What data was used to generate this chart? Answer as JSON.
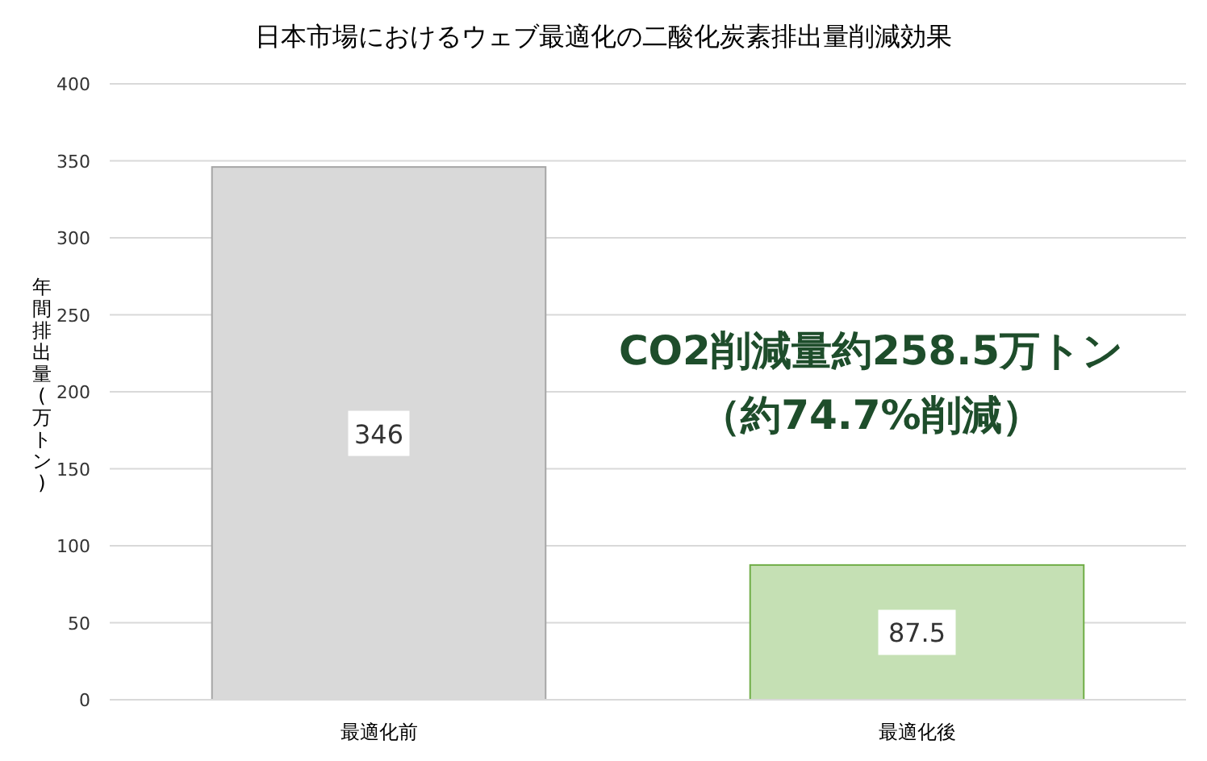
{
  "chart_data": {
    "type": "bar",
    "title": "日本市場におけるウェブ最適化の二酸化炭素排出量削減効果",
    "ylabel": "年間排出量(万トン)",
    "categories": [
      "最適化前",
      "最適化後"
    ],
    "values": [
      346,
      87.5
    ],
    "colors": [
      "#d9d9d9",
      "#c5e0b4"
    ],
    "ylim": [
      0,
      400
    ],
    "yticks": [
      0,
      50,
      100,
      150,
      200,
      250,
      300,
      350,
      400
    ],
    "grid": "y",
    "data_labels": true,
    "annotations": [
      "CO2削減量約258.5万トン",
      "（約74.7%削減）"
    ]
  }
}
